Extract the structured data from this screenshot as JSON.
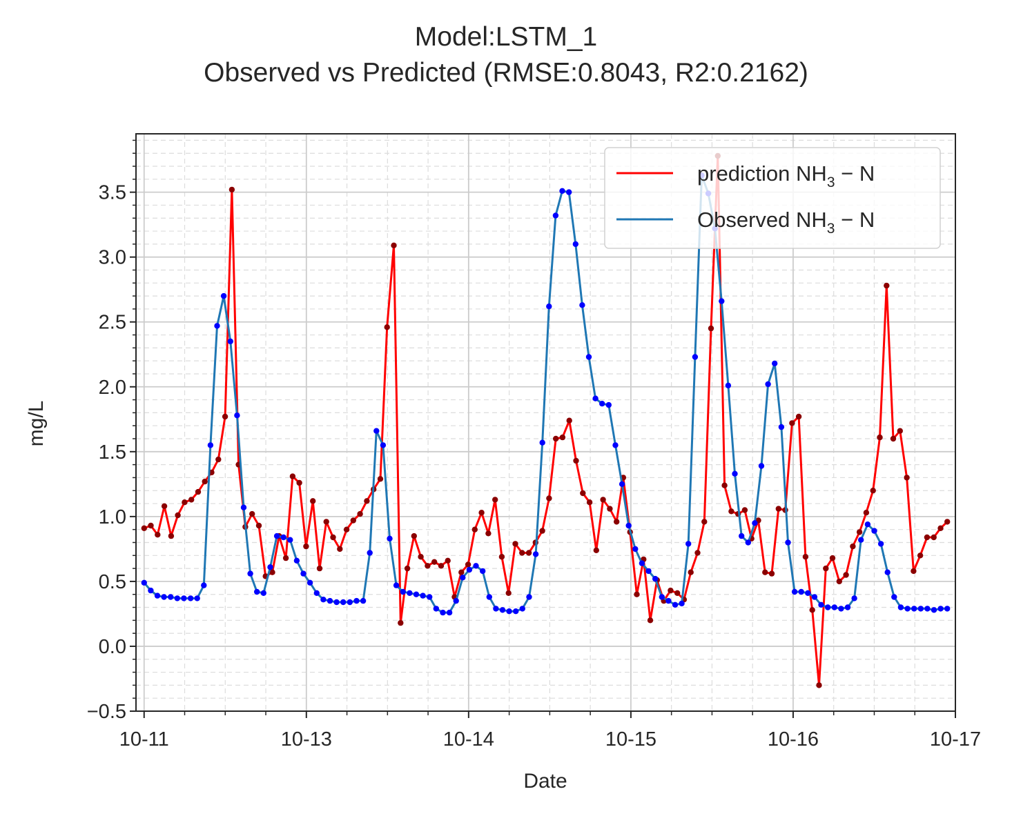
{
  "chart_data": {
    "type": "line",
    "title": "Model:LSTM_1",
    "subtitle": "Observed vs Predicted (RMSE:0.8043, R2:0.2162)",
    "xlabel": "Date",
    "ylabel": "mg/L",
    "x_start": "10-11",
    "x_end": "10-17",
    "x_ticks": [
      {
        "label": "10-11",
        "at": 0.0
      },
      {
        "label": "10-13",
        "at": 1.0
      },
      {
        "label": "10-14",
        "at": 2.0
      },
      {
        "label": "10-15",
        "at": 3.0
      },
      {
        "label": "10-16",
        "at": 4.0
      },
      {
        "label": "10-17",
        "at": 5.0
      }
    ],
    "xlim": [
      -0.05,
      5.0
    ],
    "ylim": [
      -0.5,
      3.95
    ],
    "y_ticks": [
      -0.5,
      0.0,
      0.5,
      1.0,
      1.5,
      2.0,
      2.5,
      3.0,
      3.5
    ],
    "y_tick_labels": [
      "−0.5",
      "0.0",
      "0.5",
      "1.0",
      "1.5",
      "2.0",
      "2.5",
      "3.0",
      "3.5"
    ],
    "grid": true,
    "legend_position": "upper right",
    "legend": {
      "prediction": {
        "prefix": "prediction NH",
        "sub": "3",
        "suffix": " − N"
      },
      "observed": {
        "prefix": "Observed NH",
        "sub": "3",
        "suffix": " − N"
      }
    },
    "series": [
      {
        "name": "prediction NH3 − N",
        "color": "#ff0000",
        "marker_color": "#8b0000",
        "values": [
          0.91,
          0.93,
          0.86,
          1.08,
          0.85,
          1.01,
          1.11,
          1.13,
          1.19,
          1.27,
          1.34,
          1.44,
          1.77,
          3.52,
          1.4,
          0.92,
          1.02,
          0.93,
          0.54,
          0.57,
          0.85,
          0.68,
          1.31,
          1.26,
          0.77,
          1.12,
          0.6,
          0.96,
          0.84,
          0.75,
          0.9,
          0.97,
          1.02,
          1.12,
          1.21,
          1.29,
          2.46,
          3.09,
          0.18,
          0.6,
          0.85,
          0.69,
          0.62,
          0.65,
          0.62,
          0.66,
          0.38,
          0.57,
          0.63,
          0.9,
          1.03,
          0.87,
          1.13,
          0.69,
          0.41,
          0.79,
          0.72,
          0.72,
          0.8,
          0.89,
          1.14,
          1.6,
          1.61,
          1.74,
          1.43,
          1.18,
          1.11,
          0.74,
          1.13,
          1.06,
          0.96,
          1.3,
          0.88,
          0.4,
          0.67,
          0.2,
          0.51,
          0.35,
          0.43,
          0.41,
          0.36,
          0.57,
          0.72,
          0.96,
          2.45,
          3.78,
          1.24,
          1.04,
          1.02,
          1.05,
          0.83,
          0.97,
          0.57,
          0.56,
          1.06,
          1.05,
          1.72,
          1.77,
          0.69,
          0.28,
          -0.3,
          0.6,
          0.68,
          0.5,
          0.55,
          0.77,
          0.88,
          1.03,
          1.2,
          1.61,
          2.78,
          1.6,
          1.66,
          1.3,
          0.58,
          0.7,
          0.84,
          0.84,
          0.91,
          0.96
        ]
      },
      {
        "name": "Observed NH3 − N",
        "color": "#1f77b4",
        "marker_color": "#0000ff",
        "values": [
          0.49,
          0.43,
          0.39,
          0.38,
          0.38,
          0.37,
          0.37,
          0.37,
          0.37,
          0.47,
          1.55,
          2.47,
          2.7,
          2.35,
          1.78,
          1.07,
          0.56,
          0.42,
          0.41,
          0.61,
          0.85,
          0.84,
          0.82,
          0.66,
          0.56,
          0.49,
          0.41,
          0.36,
          0.35,
          0.34,
          0.34,
          0.34,
          0.35,
          0.35,
          0.72,
          1.66,
          1.55,
          0.83,
          0.47,
          0.42,
          0.41,
          0.4,
          0.39,
          0.38,
          0.29,
          0.26,
          0.26,
          0.35,
          0.53,
          0.59,
          0.62,
          0.58,
          0.38,
          0.29,
          0.28,
          0.27,
          0.27,
          0.29,
          0.38,
          0.71,
          1.57,
          2.62,
          3.32,
          3.51,
          3.5,
          3.1,
          2.63,
          2.23,
          1.91,
          1.87,
          1.86,
          1.55,
          1.25,
          0.93,
          0.75,
          0.64,
          0.58,
          0.52,
          0.38,
          0.35,
          0.32,
          0.33,
          0.79,
          2.23,
          3.63,
          3.49,
          3.22,
          2.66,
          2.01,
          1.33,
          0.85,
          0.8,
          0.95,
          1.39,
          2.02,
          2.18,
          1.69,
          0.8,
          0.42,
          0.42,
          0.41,
          0.38,
          0.32,
          0.3,
          0.3,
          0.29,
          0.3,
          0.37,
          0.82,
          0.94,
          0.89,
          0.79,
          0.57,
          0.38,
          0.3,
          0.29,
          0.29,
          0.29,
          0.29,
          0.28,
          0.29,
          0.29
        ]
      }
    ]
  }
}
